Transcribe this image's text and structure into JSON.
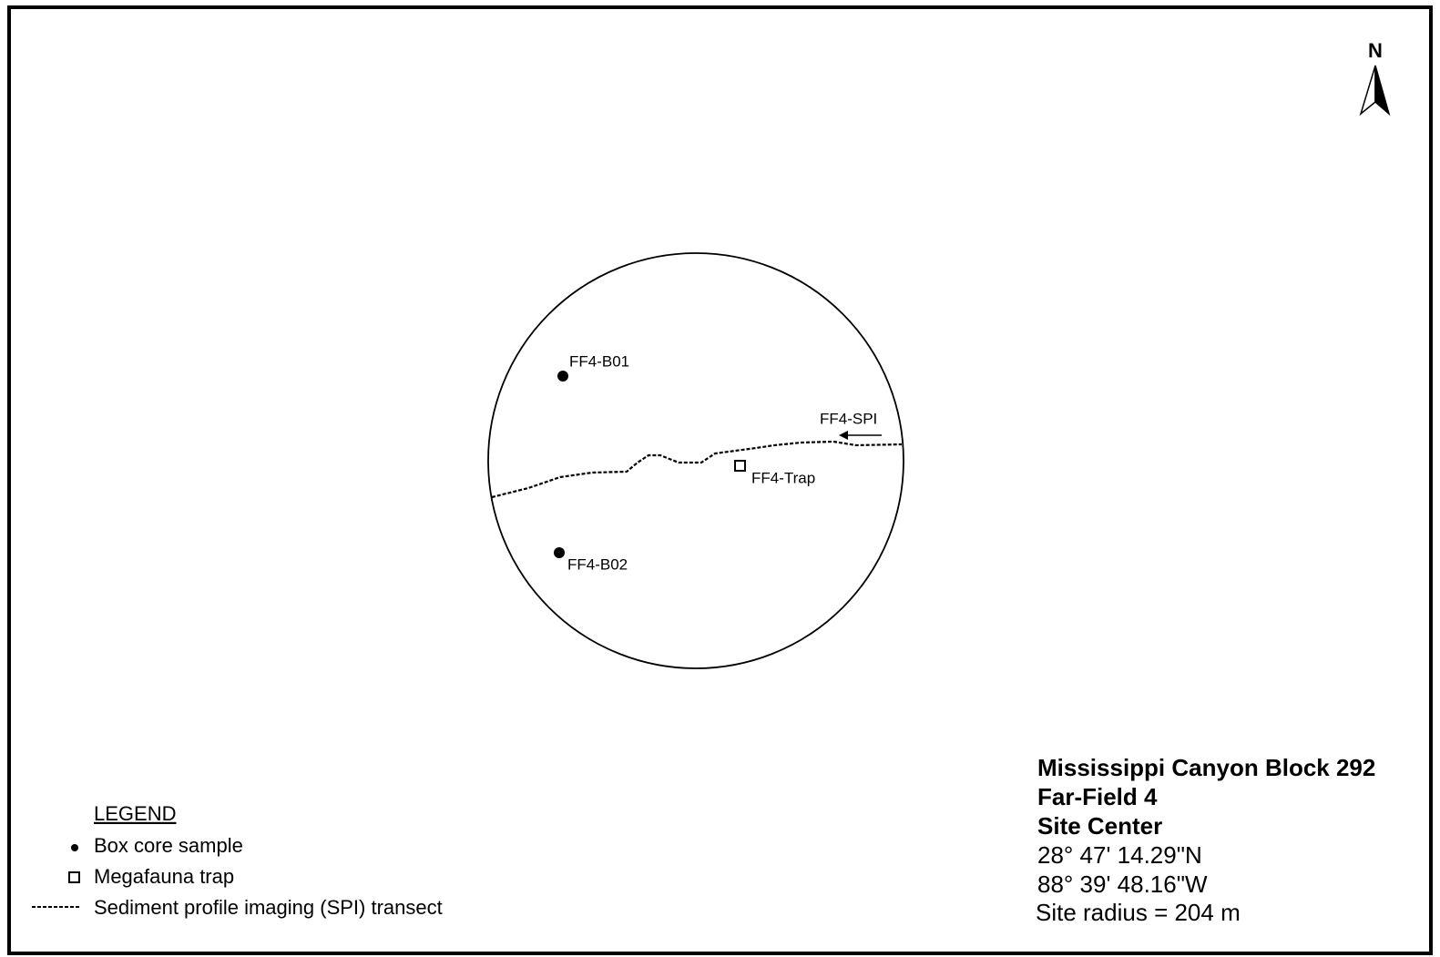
{
  "north": "N",
  "samples": [
    {
      "label": "FF4-B01"
    },
    {
      "label": "FF4-B02"
    }
  ],
  "trap": {
    "label": "FF4-Trap"
  },
  "transect": {
    "label": "FF4-SPI"
  },
  "legend": {
    "title": "LEGEND",
    "items": [
      "Box core sample",
      "Megafauna trap",
      "Sediment profile imaging (SPI) transect"
    ]
  },
  "site": {
    "lines": [
      "Mississippi Canyon Block 292",
      "Far-Field 4",
      "Site Center"
    ],
    "coords": [
      "28° 47' 14.29\"N",
      "88° 39' 48.16\"W"
    ],
    "radius": "Site radius = 204 m"
  }
}
